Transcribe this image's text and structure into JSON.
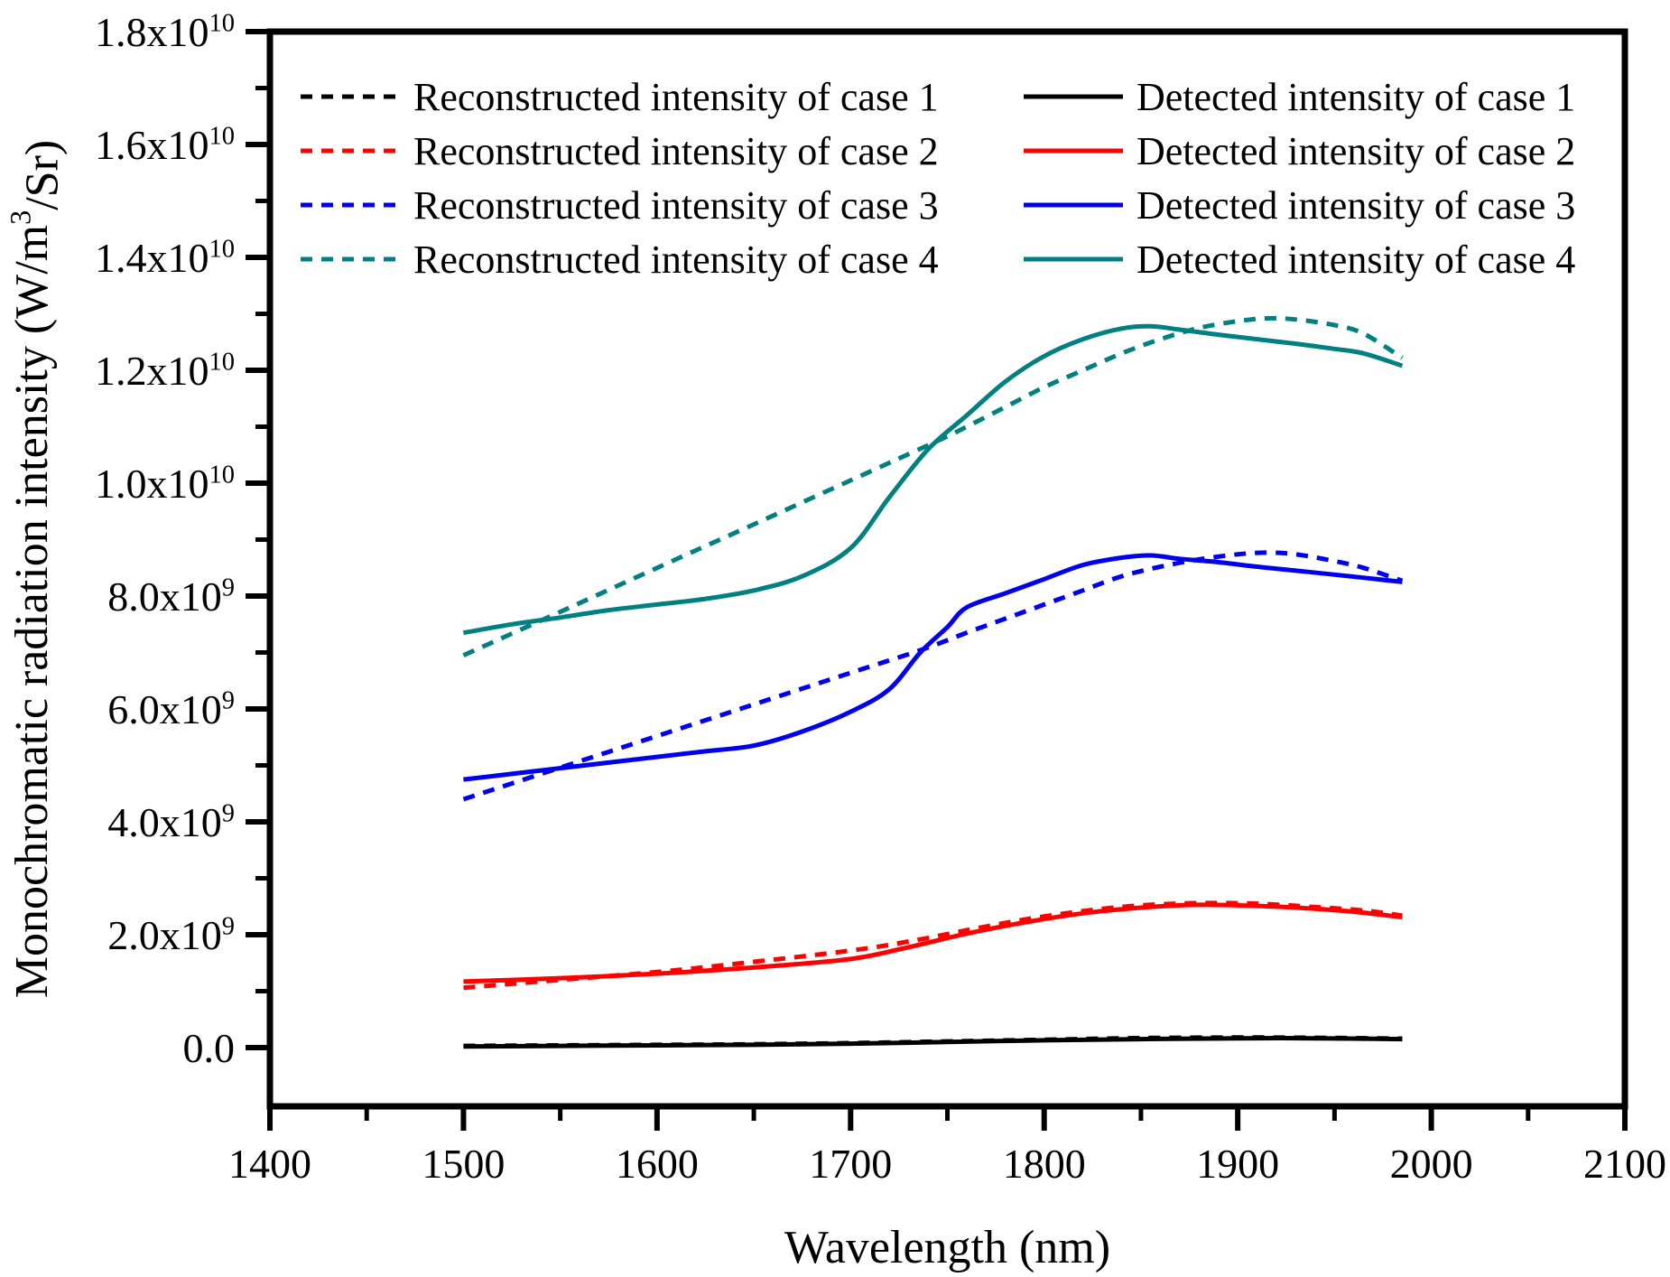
{
  "chart_data": {
    "type": "line",
    "title": "",
    "xlabel": "Wavelength (nm)",
    "ylabel": "Monochromatic radiation intensity (W/m^{3}/Sr)",
    "grid": false,
    "legend_position": "top-inside, two columns, no frame",
    "x_axis": {
      "min": 1400,
      "max": 2100,
      "major_tick_step": 100,
      "minor_tick_step": 50,
      "major_tick_labels": [
        "1400",
        "1500",
        "1600",
        "1700",
        "1800",
        "1900",
        "2000",
        "2100"
      ]
    },
    "y_axis": {
      "values_in_units_of": 1000000000.0,
      "plot_min": -1.0,
      "plot_max": 18,
      "minor_tick_step": 1,
      "major_ticks": [
        {
          "value": 0,
          "label": "0.0"
        },
        {
          "value": 2,
          "label": "2.0x10^{9}"
        },
        {
          "value": 4,
          "label": "4.0x10^{9}"
        },
        {
          "value": 6,
          "label": "6.0x10^{9}"
        },
        {
          "value": 8,
          "label": "8.0x10^{9}"
        },
        {
          "value": 10,
          "label": "1.0x10^{10}"
        },
        {
          "value": 12,
          "label": "1.2x10^{10}"
        },
        {
          "value": 14,
          "label": "1.4x10^{10}"
        },
        {
          "value": 16,
          "label": "1.6x10^{10}"
        },
        {
          "value": 18,
          "label": "1.8x10^{10}"
        }
      ]
    },
    "colors": {
      "case1": "#000000",
      "case2": "#ff0000",
      "case3": "#0000ee",
      "case4": "#008080"
    },
    "series": [
      {
        "id": "reconstructed-case-1",
        "legend_label": "Reconstructed intensity of case 1",
        "color": "#000000",
        "style": "dashed",
        "legend_column": 0,
        "legend_row": 0,
        "points": [
          [
            1500,
            0.03
          ],
          [
            1550,
            0.04
          ],
          [
            1600,
            0.05
          ],
          [
            1650,
            0.06
          ],
          [
            1700,
            0.08
          ],
          [
            1750,
            0.11
          ],
          [
            1800,
            0.14
          ],
          [
            1850,
            0.17
          ],
          [
            1900,
            0.18
          ],
          [
            1940,
            0.175
          ],
          [
            1985,
            0.16
          ]
        ]
      },
      {
        "id": "reconstructed-case-2",
        "legend_label": "Reconstructed intensity of case 2",
        "color": "#ff0000",
        "style": "dashed",
        "legend_column": 0,
        "legend_row": 1,
        "points": [
          [
            1500,
            1.06
          ],
          [
            1550,
            1.2
          ],
          [
            1600,
            1.34
          ],
          [
            1650,
            1.52
          ],
          [
            1700,
            1.72
          ],
          [
            1730,
            1.88
          ],
          [
            1760,
            2.08
          ],
          [
            1790,
            2.27
          ],
          [
            1820,
            2.42
          ],
          [
            1850,
            2.52
          ],
          [
            1880,
            2.56
          ],
          [
            1910,
            2.55
          ],
          [
            1940,
            2.49
          ],
          [
            1965,
            2.43
          ],
          [
            1985,
            2.34
          ]
        ]
      },
      {
        "id": "reconstructed-case-3",
        "legend_label": "Reconstructed intensity of case 3",
        "color": "#0000ee",
        "style": "dashed",
        "legend_column": 0,
        "legend_row": 2,
        "points": [
          [
            1500,
            4.4
          ],
          [
            1550,
            4.96
          ],
          [
            1600,
            5.52
          ],
          [
            1650,
            6.08
          ],
          [
            1700,
            6.64
          ],
          [
            1736,
            7.04
          ],
          [
            1760,
            7.35
          ],
          [
            1780,
            7.6
          ],
          [
            1800,
            7.85
          ],
          [
            1820,
            8.1
          ],
          [
            1840,
            8.35
          ],
          [
            1860,
            8.52
          ],
          [
            1880,
            8.65
          ],
          [
            1900,
            8.74
          ],
          [
            1915,
            8.77
          ],
          [
            1930,
            8.74
          ],
          [
            1950,
            8.62
          ],
          [
            1965,
            8.5
          ],
          [
            1985,
            8.27
          ]
        ]
      },
      {
        "id": "reconstructed-case-4",
        "legend_label": "Reconstructed intensity of case 4",
        "color": "#008080",
        "style": "dashed",
        "legend_column": 0,
        "legend_row": 3,
        "points": [
          [
            1500,
            6.95
          ],
          [
            1550,
            7.72
          ],
          [
            1600,
            8.5
          ],
          [
            1650,
            9.27
          ],
          [
            1700,
            10.05
          ],
          [
            1745,
            10.75
          ],
          [
            1760,
            11.0
          ],
          [
            1780,
            11.35
          ],
          [
            1800,
            11.7
          ],
          [
            1820,
            12.0
          ],
          [
            1840,
            12.3
          ],
          [
            1860,
            12.55
          ],
          [
            1880,
            12.75
          ],
          [
            1900,
            12.87
          ],
          [
            1915,
            12.92
          ],
          [
            1930,
            12.9
          ],
          [
            1950,
            12.8
          ],
          [
            1965,
            12.65
          ],
          [
            1985,
            12.22
          ]
        ]
      },
      {
        "id": "detected-case-1",
        "legend_label": "Detected intensity of case 1",
        "color": "#000000",
        "style": "solid",
        "legend_column": 1,
        "legend_row": 0,
        "points": [
          [
            1500,
            0.02
          ],
          [
            1550,
            0.03
          ],
          [
            1600,
            0.04
          ],
          [
            1650,
            0.05
          ],
          [
            1700,
            0.07
          ],
          [
            1750,
            0.1
          ],
          [
            1800,
            0.13
          ],
          [
            1850,
            0.15
          ],
          [
            1900,
            0.165
          ],
          [
            1940,
            0.165
          ],
          [
            1985,
            0.15
          ]
        ]
      },
      {
        "id": "detected-case-2",
        "legend_label": "Detected intensity of case 2",
        "color": "#ff0000",
        "style": "solid",
        "legend_column": 1,
        "legend_row": 1,
        "points": [
          [
            1500,
            1.17
          ],
          [
            1550,
            1.23
          ],
          [
            1600,
            1.31
          ],
          [
            1650,
            1.42
          ],
          [
            1700,
            1.57
          ],
          [
            1730,
            1.78
          ],
          [
            1760,
            2.02
          ],
          [
            1790,
            2.22
          ],
          [
            1820,
            2.38
          ],
          [
            1850,
            2.48
          ],
          [
            1880,
            2.53
          ],
          [
            1910,
            2.51
          ],
          [
            1940,
            2.46
          ],
          [
            1965,
            2.39
          ],
          [
            1985,
            2.31
          ]
        ]
      },
      {
        "id": "detected-case-3",
        "legend_label": "Detected intensity of case 3",
        "color": "#0000ee",
        "style": "solid",
        "legend_column": 1,
        "legend_row": 2,
        "points": [
          [
            1500,
            4.75
          ],
          [
            1525,
            4.85
          ],
          [
            1550,
            4.95
          ],
          [
            1575,
            5.05
          ],
          [
            1600,
            5.15
          ],
          [
            1625,
            5.25
          ],
          [
            1650,
            5.35
          ],
          [
            1675,
            5.6
          ],
          [
            1700,
            5.95
          ],
          [
            1720,
            6.35
          ],
          [
            1736,
            7.0
          ],
          [
            1750,
            7.45
          ],
          [
            1760,
            7.8
          ],
          [
            1780,
            8.05
          ],
          [
            1800,
            8.3
          ],
          [
            1820,
            8.55
          ],
          [
            1840,
            8.68
          ],
          [
            1855,
            8.72
          ],
          [
            1870,
            8.66
          ],
          [
            1890,
            8.6
          ],
          [
            1910,
            8.52
          ],
          [
            1930,
            8.45
          ],
          [
            1950,
            8.38
          ],
          [
            1985,
            8.25
          ]
        ]
      },
      {
        "id": "detected-case-4",
        "legend_label": "Detected intensity of case 4",
        "color": "#008080",
        "style": "solid",
        "legend_column": 1,
        "legend_row": 3,
        "points": [
          [
            1500,
            7.35
          ],
          [
            1525,
            7.5
          ],
          [
            1550,
            7.62
          ],
          [
            1575,
            7.75
          ],
          [
            1600,
            7.85
          ],
          [
            1625,
            7.95
          ],
          [
            1650,
            8.1
          ],
          [
            1675,
            8.35
          ],
          [
            1700,
            8.85
          ],
          [
            1720,
            9.75
          ],
          [
            1740,
            10.6
          ],
          [
            1760,
            11.2
          ],
          [
            1780,
            11.8
          ],
          [
            1800,
            12.25
          ],
          [
            1820,
            12.55
          ],
          [
            1840,
            12.74
          ],
          [
            1855,
            12.78
          ],
          [
            1870,
            12.72
          ],
          [
            1890,
            12.63
          ],
          [
            1910,
            12.55
          ],
          [
            1930,
            12.47
          ],
          [
            1950,
            12.38
          ],
          [
            1965,
            12.3
          ],
          [
            1985,
            12.08
          ]
        ]
      }
    ]
  }
}
